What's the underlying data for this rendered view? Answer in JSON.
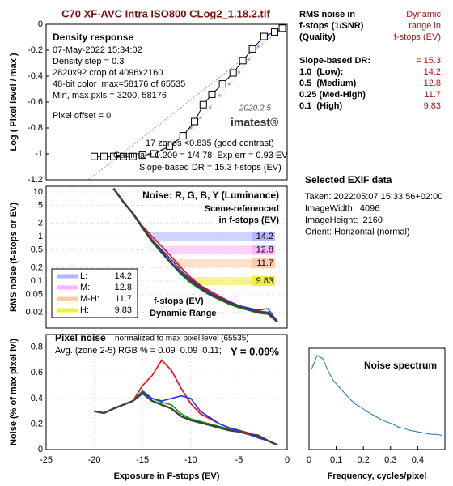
{
  "header": {
    "title": "C70 XF-AVC Intra ISO800 CLog2_1.18.2.tif"
  },
  "dr_table": {
    "header_left": [
      "RMS noise in",
      "f-stops (1/SNR)",
      "(Quality)"
    ],
    "header_right": [
      "Dynamic",
      "range in",
      "f-stops (EV)"
    ],
    "slope_label": "Slope-based DR:",
    "slope_value": "= 15.3",
    "rows": [
      "1.0  (Low):",
      "0.5  (Medium)",
      "0.25 (Med-High)",
      "0.1  (High)"
    ]
  },
  "exif": {
    "title": "Selected EXIF data",
    "lines": [
      "Taken: 2022:05:07 15:33:56+02:00",
      "ImageWidth:  4096",
      "ImageHeight:  2160",
      "Orient: Horizontal (normal)"
    ]
  },
  "chart_data": [
    {
      "type": "line",
      "title": "Density response",
      "ylabel": "Log ( Pixel level / max )",
      "xlim": [
        -25,
        0
      ],
      "ylim": [
        -1.2,
        0
      ],
      "yticks": [
        0,
        -0.2,
        -0.4,
        -0.6,
        -0.8,
        -1,
        -1.2
      ],
      "grid": false,
      "annotations": [
        "07-May-2022 15:34:02",
        "Density step = 0.3",
        "2820x92 crop of 4096x2160",
        "48-bit color  max=58176 of 65535",
        "Min, max pxls = 3200, 58176",
        "Pixel offset = 0",
        "2020.2.5",
        "imatest®",
        "17 zones <0.835 (good contrast)",
        "Gamma = 0.209 = 1/4.78  Exp err = 0.93 EV",
        "Slope-based DR = 15.3 f-stops (EV)"
      ],
      "series": [
        {
          "color": "#a08cd0",
          "dash": true,
          "width": 1,
          "x": [
            -20.6,
            -0.3
          ],
          "values": [
            -1.2,
            -0.02
          ]
        },
        {
          "color": "#a8a8f0",
          "marker": "dot",
          "width": 1,
          "x": [
            -15,
            -14,
            -13,
            -12,
            -11,
            -10,
            -9,
            -8,
            -7,
            -6,
            -5,
            -4,
            -3,
            -2
          ],
          "values": [
            -1.02,
            -1.0,
            -0.97,
            -0.92,
            -0.86,
            -0.8,
            -0.72,
            -0.64,
            -0.55,
            -0.46,
            -0.37,
            -0.27,
            -0.17,
            -0.08
          ]
        },
        {
          "color": "#000000",
          "marker": "square",
          "width": 1,
          "x": [
            -20,
            -19,
            -18,
            -17,
            -16,
            -15,
            -13.8,
            -12.2,
            -10.8,
            -9.6,
            -8.7,
            -7.8,
            -6.7,
            -5.6,
            -4.6,
            -3.6,
            -2.4,
            -1.3,
            -0.5
          ],
          "values": [
            -1.02,
            -1.02,
            -1.02,
            -1.02,
            -1.02,
            -1.01,
            -1.0,
            -0.94,
            -0.86,
            -0.75,
            -0.62,
            -0.54,
            -0.46,
            -0.375,
            -0.28,
            -0.19,
            -0.094,
            -0.06,
            -0.03
          ]
        }
      ]
    },
    {
      "type": "line",
      "title": "Noise: R, G, B, Y (Luminance)",
      "ylabel": "RMS noise (f-stops or EV)",
      "log_scale": true,
      "xlim": [
        -25,
        0
      ],
      "ylim": [
        0.0088,
        13.4
      ],
      "yticks": [
        10,
        5,
        2,
        1,
        0.5,
        0.2,
        0.1,
        0.05,
        0.02
      ],
      "grid": true,
      "annotations": [
        "Scene-referenced",
        "in f-stops (EV)",
        "f-stops (EV)",
        "Dynamic Range"
      ],
      "x": [
        -18,
        -17,
        -16,
        -15,
        -14,
        -13,
        -12,
        -11,
        -10,
        -9,
        -8,
        -7,
        -6,
        -5,
        -4,
        -3,
        -2,
        -1
      ],
      "series": [
        {
          "color": "#ff0000",
          "width": 1.6,
          "values": [
            12,
            6,
            3.3,
            1.7,
            1.0,
            0.6,
            0.35,
            0.2,
            0.12,
            0.08,
            0.06,
            0.045,
            0.035,
            0.028,
            0.024,
            0.021,
            0.02,
            0.013
          ]
        },
        {
          "color": "#00a000",
          "width": 1.6,
          "values": [
            12,
            6,
            3.2,
            1.5,
            0.75,
            0.42,
            0.24,
            0.14,
            0.09,
            0.065,
            0.048,
            0.038,
            0.03,
            0.025,
            0.022,
            0.019,
            0.018,
            0.012
          ]
        },
        {
          "color": "#2030ff",
          "width": 1.6,
          "values": [
            12,
            6,
            3.3,
            1.6,
            0.85,
            0.5,
            0.3,
            0.17,
            0.11,
            0.075,
            0.055,
            0.042,
            0.034,
            0.028,
            0.025,
            0.022,
            0.024,
            0.012
          ]
        },
        {
          "color": "#404040",
          "width": 2.6,
          "values": [
            12,
            6,
            3.3,
            1.6,
            0.8,
            0.45,
            0.25,
            0.15,
            0.1,
            0.07,
            0.05,
            0.04,
            0.032,
            0.027,
            0.023,
            0.02,
            0.019,
            0.012
          ]
        }
      ],
      "bands": [
        {
          "name": "L:",
          "threshold": 1,
          "value": 14.2,
          "color": "#b4b4ff"
        },
        {
          "name": "M:",
          "threshold": 0.5,
          "value": 12.8,
          "color": "#ffb4ff"
        },
        {
          "name": "M-H:",
          "threshold": 0.25,
          "value": 11.7,
          "color": "#ffcca8"
        },
        {
          "name": "H:",
          "threshold": 0.1,
          "value": 9.83,
          "color": "#f0f040"
        }
      ]
    },
    {
      "type": "line",
      "title": "Pixel noise",
      "ylabel": "Noise (% of max pixel lvl)",
      "xlabel": "Exposure in F-stops (EV)",
      "xlim": [
        -25,
        0
      ],
      "xticks": [
        -25,
        -20,
        -15,
        -10,
        -5,
        0
      ],
      "ylim": [
        0,
        0.9
      ],
      "yticks": [
        0,
        0.2,
        0.4,
        0.6,
        0.8
      ],
      "grid": true,
      "annotations": [
        "normalized to max pixel level (65535)",
        "Avg. (zone 2-5) RGB % = 0.09  0.09  0.11;",
        "Y = 0.09%"
      ],
      "x": [
        -20,
        -19,
        -18,
        -17,
        -16,
        -15,
        -14,
        -13,
        -12,
        -11,
        -10,
        -9,
        -8,
        -7,
        -6,
        -5,
        -4,
        -3,
        -2,
        -1
      ],
      "series": [
        {
          "color": "#ff0000",
          "width": 1.6,
          "values": [
            null,
            null,
            null,
            0.35,
            0.38,
            0.5,
            0.58,
            0.7,
            0.62,
            0.48,
            0.36,
            0.28,
            0.24,
            0.2,
            0.17,
            0.15,
            0.13,
            0.1,
            0.07,
            0.035
          ]
        },
        {
          "color": "#00a000",
          "width": 1.6,
          "values": [
            null,
            null,
            null,
            0.35,
            0.38,
            0.46,
            0.4,
            0.37,
            0.35,
            0.28,
            0.24,
            0.22,
            0.2,
            0.18,
            0.16,
            0.14,
            0.12,
            0.1,
            0.07,
            0.035
          ]
        },
        {
          "color": "#2030ff",
          "width": 1.6,
          "values": [
            null,
            null,
            null,
            0.35,
            0.38,
            0.45,
            0.4,
            0.38,
            0.4,
            0.42,
            0.4,
            0.3,
            0.25,
            0.2,
            0.17,
            0.15,
            0.12,
            0.09,
            0.07,
            0.035
          ]
        },
        {
          "color": "#404040",
          "width": 2.4,
          "values": [
            0.3,
            0.285,
            0.32,
            0.35,
            0.38,
            0.44,
            0.38,
            0.35,
            0.32,
            0.26,
            0.23,
            0.21,
            0.19,
            0.17,
            0.15,
            0.14,
            0.12,
            0.11,
            0.07,
            0.035
          ]
        }
      ]
    },
    {
      "type": "line",
      "title": "Noise spectrum",
      "xlabel": "Frequency, cycles/pixel",
      "xlim": [
        0,
        0.5
      ],
      "xticks": [
        0,
        0.1,
        0.2,
        0.3,
        0.4
      ],
      "ylim": [
        0,
        1
      ],
      "grid": false,
      "x": [
        0.01,
        0.03,
        0.05,
        0.07,
        0.09,
        0.11,
        0.13,
        0.15,
        0.17,
        0.19,
        0.21,
        0.23,
        0.25,
        0.27,
        0.29,
        0.31,
        0.33,
        0.35,
        0.37,
        0.39,
        0.41,
        0.43,
        0.45,
        0.47,
        0.49
      ],
      "series": [
        {
          "color": "#1f77b4",
          "width": 1,
          "values": [
            0.8,
            0.93,
            0.9,
            0.78,
            0.68,
            0.62,
            0.56,
            0.5,
            0.45,
            0.42,
            0.38,
            0.35,
            0.32,
            0.29,
            0.27,
            0.25,
            0.22,
            0.21,
            0.19,
            0.18,
            0.17,
            0.16,
            0.15,
            0.15,
            0.14
          ]
        }
      ]
    }
  ]
}
